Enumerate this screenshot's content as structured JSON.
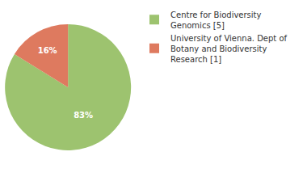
{
  "chart_data": {
    "type": "pie",
    "categories": [
      "Centre for Biodiversity Genomics [5]",
      "University of Vienna. Dept of Botany and Biodiversity Research [1]"
    ],
    "values": [
      83,
      16
    ],
    "value_labels": [
      "83%",
      "16%"
    ],
    "colors": [
      "#9dc36f",
      "#de7a5f"
    ],
    "data_labels": true,
    "legend": "top right"
  }
}
